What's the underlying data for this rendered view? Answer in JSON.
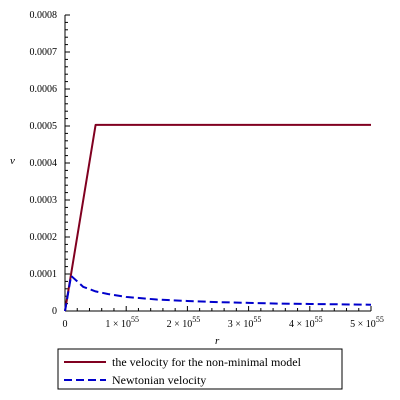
{
  "chart_data": {
    "type": "line",
    "xlabel": "r",
    "ylabel": "v",
    "xlim": [
      0,
      5e+55
    ],
    "ylim": [
      0,
      0.0008
    ],
    "x_ticks": [
      1e+55,
      2e+55,
      3e+55,
      4e+55,
      5e+55
    ],
    "x_tick_labels": [
      "1 × 10",
      "2 × 10",
      "3 × 10",
      "4 × 10",
      "5 × 10"
    ],
    "x_tick_exponent": "55",
    "origin_label": "0",
    "y_ticks": [
      0,
      0.0001,
      0.0002,
      0.0003,
      0.0004,
      0.0005,
      0.0006,
      0.0007,
      0.0008
    ],
    "y_tick_labels": [
      "0",
      "0.0001",
      "0.0002",
      "0.0003",
      "0.0004",
      "0.0005",
      "0.0006",
      "0.0007",
      "0.0008"
    ],
    "legend_position": "bottom",
    "series": [
      {
        "name": "the velocity for the non-minimal model",
        "color": "#800020",
        "dash": "solid",
        "x": [
          0,
          5e+54,
          5e+55
        ],
        "y": [
          0,
          0.000503,
          0.000503
        ]
      },
      {
        "name": "Newtonian velocity",
        "color": "#0000cc",
        "dash": "dashed",
        "x": [
          0,
          1e+54,
          2e+54,
          3e+54,
          5e+54,
          7e+54,
          1e+55,
          1.5e+55,
          2e+55,
          2.5e+55,
          3e+55,
          3.5e+55,
          4e+55,
          4.5e+55,
          5e+55
        ],
        "y": [
          0,
          9.5e-05,
          8e-05,
          6.5e-05,
          5.3e-05,
          4.6e-05,
          3.8e-05,
          3.1e-05,
          2.7e-05,
          2.4e-05,
          2.2e-05,
          2e-05,
          1.9e-05,
          1.8e-05,
          1.7e-05
        ]
      }
    ]
  }
}
